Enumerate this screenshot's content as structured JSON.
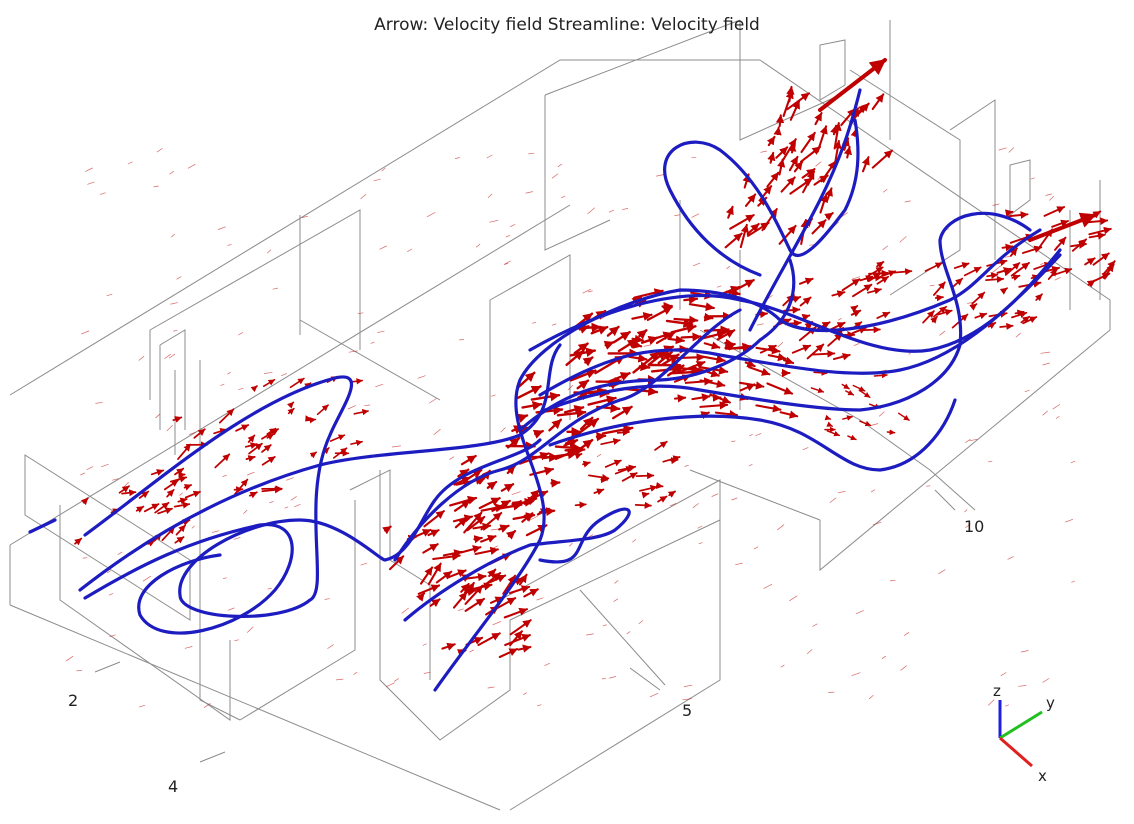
{
  "title": "Arrow: Velocity field Streamline: Velocity field",
  "axis_ticks": [
    "2",
    "4",
    "5",
    "10"
  ],
  "triad": {
    "z": "z",
    "y": "y",
    "x": "x"
  },
  "colors": {
    "arrows": "#c00000",
    "streamlines": "#1c1cc0",
    "geometry": "#8c8c8c",
    "triad_x": "#e02020",
    "triad_y": "#20c020",
    "triad_z": "#2020e0"
  }
}
